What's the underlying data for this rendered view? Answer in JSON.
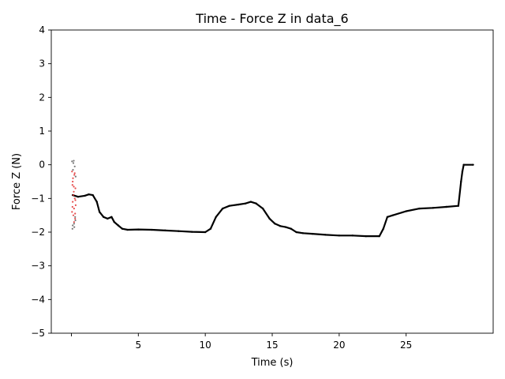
{
  "chart_data": {
    "type": "line",
    "title": "Time - Force Z in data_6",
    "xlabel": "Time (s)",
    "ylabel": "Force Z (N)",
    "xlim": [
      -1.5,
      31.5
    ],
    "ylim": [
      -5,
      4
    ],
    "x_ticks": [
      0,
      5,
      10,
      15,
      20,
      25
    ],
    "x_tick_labels": [
      "",
      "5",
      "10",
      "15",
      "20",
      "25"
    ],
    "y_ticks": [
      4,
      3,
      2,
      1,
      0,
      -1,
      -2,
      -3,
      -4,
      -5
    ],
    "y_tick_labels": [
      "4",
      "3",
      "2",
      "1",
      "0",
      "−1",
      "−2",
      "−3",
      "−4",
      "−5"
    ],
    "grid": false,
    "series": [
      {
        "color": "#000000",
        "x": [
          0.1,
          0.5,
          1.0,
          1.3,
          1.6,
          1.9,
          2.1,
          2.4,
          2.7,
          3.0,
          3.2,
          3.5,
          3.8,
          4.2,
          5.0,
          6.0,
          7.0,
          8.0,
          9.0,
          10.0,
          10.4,
          10.8,
          11.3,
          11.8,
          12.5,
          13.0,
          13.4,
          13.8,
          14.3,
          14.8,
          15.2,
          15.6,
          16.0,
          16.4,
          16.8,
          17.3,
          18.0,
          19.0,
          20.0,
          21.0,
          22.0,
          23.0,
          23.3,
          23.6,
          24.0,
          25.0,
          26.0,
          27.0,
          28.0,
          28.9,
          29.1,
          29.2,
          29.3,
          30.0
        ],
        "y": [
          -0.9,
          -0.95,
          -0.92,
          -0.88,
          -0.9,
          -1.1,
          -1.4,
          -1.55,
          -1.6,
          -1.55,
          -1.7,
          -1.8,
          -1.9,
          -1.93,
          -1.92,
          -1.93,
          -1.95,
          -1.97,
          -1.99,
          -2.0,
          -1.9,
          -1.55,
          -1.3,
          -1.22,
          -1.18,
          -1.15,
          -1.1,
          -1.15,
          -1.3,
          -1.6,
          -1.75,
          -1.82,
          -1.85,
          -1.9,
          -2.0,
          -2.03,
          -2.05,
          -2.08,
          -2.1,
          -2.1,
          -2.12,
          -2.12,
          -1.9,
          -1.55,
          -1.5,
          -1.38,
          -1.3,
          -1.28,
          -1.25,
          -1.22,
          -0.5,
          -0.2,
          0.0,
          0.0
        ]
      },
      {
        "color": "#e02020",
        "x": [
          0.05,
          0.08,
          0.1,
          0.12,
          0.15,
          0.18,
          0.2,
          0.22,
          0.25,
          0.28,
          0.3,
          0.32,
          0.05,
          0.1,
          0.15,
          0.2,
          0.25,
          0.3,
          0.08,
          0.18,
          0.28
        ],
        "y": [
          -0.2,
          -0.6,
          -1.1,
          -0.4,
          -1.5,
          -0.8,
          -1.3,
          -0.3,
          -1.0,
          -1.6,
          -0.7,
          -1.2,
          -1.4,
          -0.5,
          -0.9,
          -1.7,
          -0.25,
          -1.05,
          -1.25,
          -0.65,
          -1.45
        ]
      },
      {
        "color": "#555555",
        "x": [
          0.05,
          0.1,
          0.15,
          0.2,
          0.25,
          0.3,
          0.08,
          0.18,
          0.28,
          0.12,
          0.22,
          0.32
        ],
        "y": [
          0.1,
          -1.8,
          0.05,
          -1.75,
          -0.05,
          -1.65,
          -1.9,
          0.12,
          -1.55,
          -0.15,
          -1.85,
          -0.35
        ]
      }
    ]
  }
}
